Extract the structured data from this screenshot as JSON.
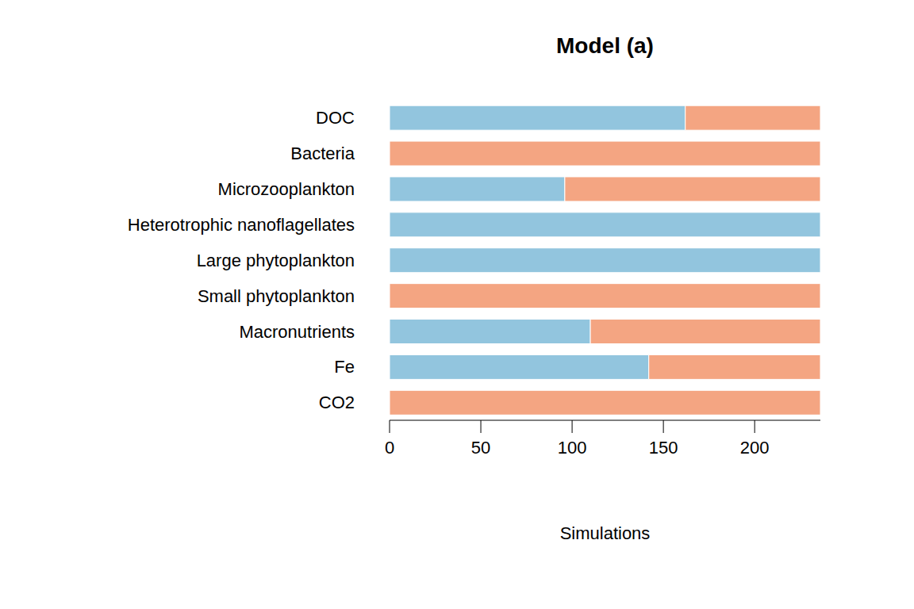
{
  "chart_data": {
    "type": "bar",
    "title": "Model (a)",
    "orientation": "horizontal",
    "stacked": true,
    "xlabel": "Simulations",
    "categories": [
      "DOC",
      "Bacteria",
      "Microzooplankton",
      "Heterotrophic nanoflagellates",
      "Large phytoplankton",
      "Small phytoplankton",
      "Macronutrients",
      "Fe",
      "CO2"
    ],
    "series": [
      {
        "color": "#92c5de",
        "values": [
          162,
          0,
          96,
          236,
          236,
          0,
          110,
          142,
          0
        ]
      },
      {
        "color": "#f4a582",
        "values": [
          74,
          236,
          140,
          0,
          0,
          236,
          126,
          94,
          236
        ]
      }
    ],
    "xlim": [
      0,
      236
    ],
    "xticks": [
      0,
      50,
      100,
      150,
      200
    ]
  }
}
